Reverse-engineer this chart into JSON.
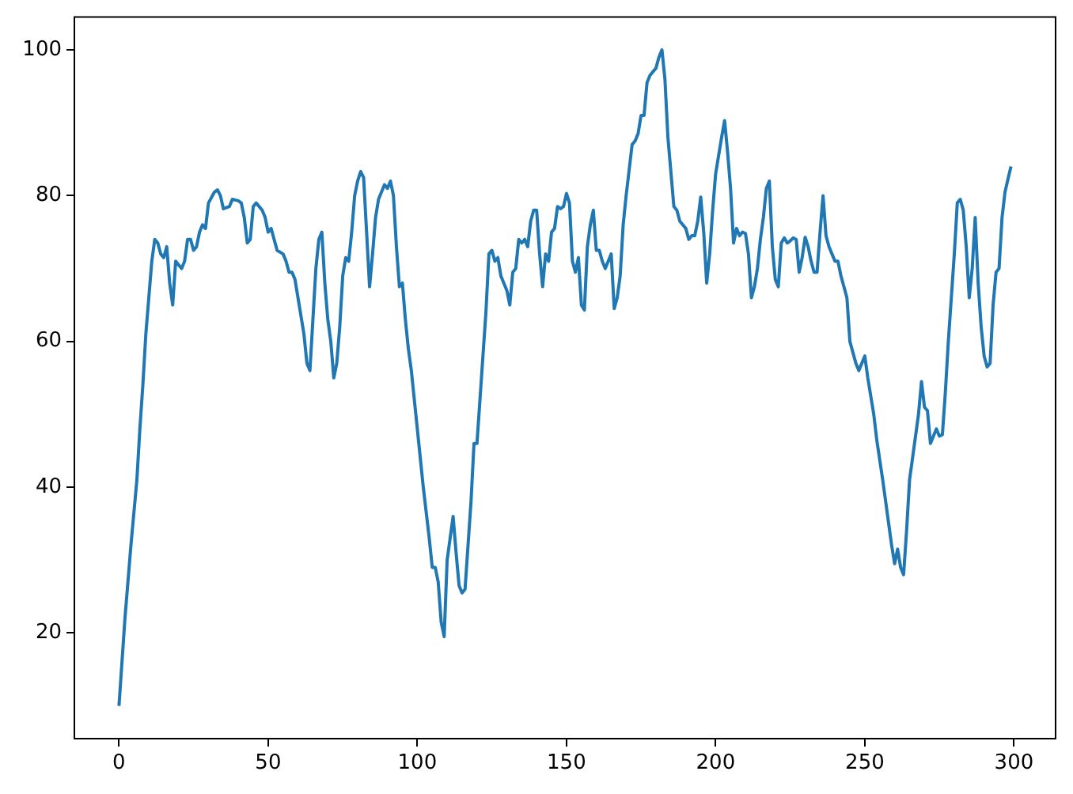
{
  "chart_data": {
    "type": "line",
    "x": [
      0,
      2,
      4,
      6,
      7,
      8,
      9,
      10,
      11,
      12,
      13,
      14,
      15,
      16,
      17,
      18,
      19,
      20,
      21,
      22,
      23,
      24,
      25,
      26,
      27,
      28,
      29,
      30,
      32,
      33,
      34,
      35,
      37,
      38,
      40,
      41,
      42,
      43,
      44,
      45,
      46,
      48,
      49,
      50,
      51,
      52,
      53,
      55,
      56,
      57,
      58,
      59,
      60,
      62,
      63,
      64,
      65,
      66,
      67,
      68,
      69,
      70,
      71,
      72,
      73,
      74,
      75,
      76,
      77,
      78,
      79,
      80,
      81,
      82,
      83,
      84,
      85,
      86,
      87,
      88,
      89,
      90,
      91,
      92,
      93,
      94,
      95,
      96,
      97,
      98,
      100,
      102,
      104,
      105,
      106,
      107,
      108,
      109,
      110,
      111,
      112,
      113,
      114,
      115,
      116,
      118,
      119,
      120,
      122,
      123,
      124,
      125,
      126,
      127,
      128,
      130,
      131,
      132,
      133,
      134,
      135,
      136,
      137,
      138,
      139,
      140,
      141,
      142,
      143,
      144,
      145,
      146,
      147,
      148,
      149,
      150,
      151,
      152,
      153,
      154,
      155,
      156,
      157,
      158,
      159,
      160,
      161,
      162,
      163,
      164,
      165,
      166,
      167,
      168,
      169,
      170,
      172,
      173,
      174,
      175,
      176,
      177,
      178,
      180,
      181,
      182,
      183,
      184,
      186,
      187,
      188,
      189,
      190,
      191,
      192,
      193,
      194,
      195,
      196,
      197,
      198,
      199,
      200,
      202,
      203,
      204,
      205,
      206,
      207,
      208,
      209,
      210,
      211,
      212,
      213,
      214,
      215,
      216,
      217,
      218,
      219,
      220,
      221,
      222,
      223,
      224,
      225,
      226,
      227,
      228,
      229,
      230,
      231,
      232,
      233,
      234,
      235,
      236,
      237,
      238,
      239,
      240,
      241,
      242,
      243,
      244,
      245,
      246,
      247,
      248,
      249,
      250,
      251,
      253,
      254,
      256,
      258,
      259,
      260,
      261,
      262,
      263,
      264,
      265,
      266,
      268,
      269,
      270,
      271,
      272,
      273,
      274,
      275,
      276,
      277,
      278,
      280,
      281,
      282,
      283,
      284,
      285,
      286,
      287,
      288,
      289,
      290,
      291,
      292,
      293,
      294,
      295,
      296,
      297,
      298,
      299
    ],
    "series": [
      {
        "color": "#1f77b4",
        "values": [
          10,
          22,
          32,
          41,
          48,
          54,
          61,
          66,
          71,
          74,
          73.5,
          72,
          71.5,
          73,
          68,
          65,
          71,
          70.5,
          70,
          71,
          74,
          74,
          72.5,
          73,
          75,
          76,
          75.5,
          79,
          80.5,
          80.8,
          80,
          78.2,
          78.5,
          79.5,
          79.3,
          79,
          77,
          73.5,
          74,
          78.5,
          79,
          78,
          77,
          75,
          75.5,
          74,
          72.5,
          72,
          71,
          69.5,
          69.5,
          68.5,
          66,
          61,
          57,
          56,
          63,
          70,
          74,
          75,
          68,
          63,
          60,
          55,
          57,
          62,
          69,
          71.5,
          71,
          75,
          80,
          82,
          83.3,
          82.5,
          75,
          67.5,
          72,
          77,
          79.5,
          80.5,
          81.5,
          81,
          82,
          80,
          73,
          67.5,
          68,
          63,
          59,
          56,
          48,
          40,
          33,
          29,
          29,
          27,
          21.5,
          19.5,
          30,
          33,
          36,
          31,
          26.5,
          25.5,
          26,
          38,
          46,
          46,
          58,
          64,
          72,
          72.5,
          71,
          71.5,
          69,
          67,
          65,
          69.5,
          70,
          74,
          73.5,
          74,
          73,
          76.5,
          78,
          78,
          72,
          67.5,
          72,
          71,
          75,
          75.5,
          78.5,
          78.2,
          78.5,
          80.3,
          79,
          71,
          69.5,
          71.5,
          65,
          64.3,
          73,
          76,
          78,
          72.5,
          72.5,
          71,
          70,
          71,
          72,
          64.5,
          66,
          69,
          76,
          80,
          87,
          87.5,
          88.5,
          91,
          91,
          95.5,
          96.5,
          97.5,
          99,
          100,
          96,
          88,
          78.5,
          78,
          76.5,
          76,
          75.5,
          74,
          74.5,
          74.5,
          76.5,
          79.8,
          75,
          68,
          72,
          78,
          83,
          88,
          90.3,
          86,
          81,
          73.5,
          75.5,
          74.5,
          75,
          74.8,
          72,
          66,
          67.5,
          70,
          74,
          77,
          81,
          82,
          73,
          68.5,
          67.5,
          73.5,
          74.2,
          73.5,
          73.8,
          74.2,
          74,
          69.5,
          71.5,
          74.3,
          73,
          71,
          69.5,
          69.5,
          75,
          80,
          74.5,
          73,
          72,
          71,
          71,
          69,
          67.5,
          66,
          60,
          58.5,
          57,
          56,
          57,
          58,
          55,
          50,
          46.5,
          41,
          35,
          32,
          29.5,
          31.5,
          29,
          28,
          34,
          41,
          44,
          50,
          54.5,
          51,
          50.5,
          46,
          47,
          48,
          47,
          47.2,
          53,
          60,
          72,
          79,
          79.5,
          78,
          73,
          66,
          70,
          77,
          68,
          62,
          58,
          56.5,
          57,
          65,
          69.5,
          70,
          77,
          80.5,
          82.3,
          84
        ]
      }
    ],
    "xlim": [
      -14.95,
      313.95
    ],
    "xticks": [
      0,
      50,
      100,
      150,
      200,
      250,
      300
    ],
    "ylim": [
      5.5,
      104.5
    ],
    "yticks": [
      20,
      40,
      60,
      80,
      100
    ],
    "grid": false,
    "legend": false,
    "marker": "none",
    "line_style": "solid"
  }
}
